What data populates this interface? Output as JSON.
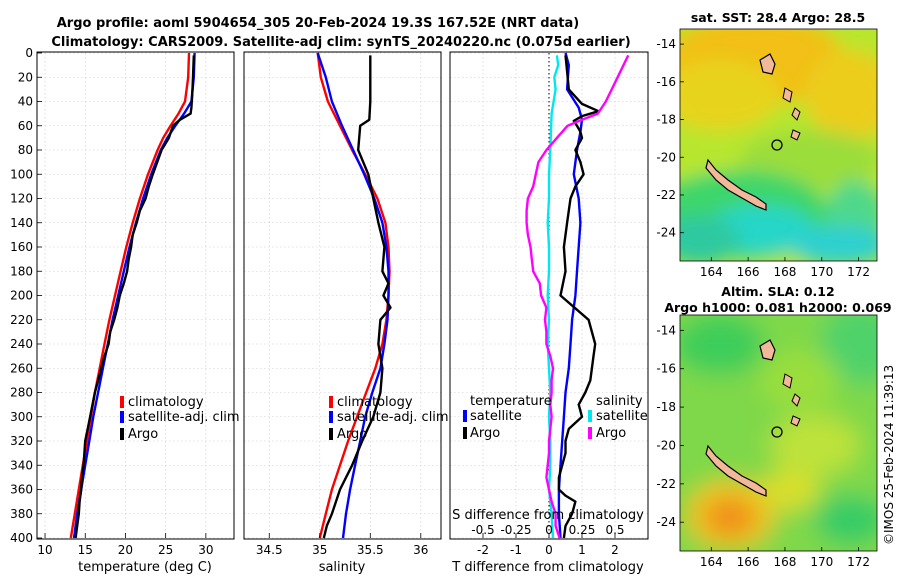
{
  "title_line1": "Argo profile: aoml 5904654_305 20-Feb-2024 19.3S 167.52E (NRT data)",
  "title_line2": "Climatology: CARS2009. Satellite-adj clim: synTS_20240220.nc (0.075d earlier)",
  "timestamp": "©IMOS 25-Feb-2024 11:39:13",
  "colors": {
    "climatology": "#ff0000",
    "satellite": "#0000ff",
    "argo": "#000000",
    "t_sat_diff": "#00e8ee",
    "s_diff": "#ff00ff",
    "land": "#f2b89a"
  },
  "chart_data": [
    {
      "id": "temperature",
      "type": "line",
      "xlabel": "temperature (deg C)",
      "ylabel": "",
      "xlim": [
        9,
        33.5
      ],
      "ylim": [
        400,
        0
      ],
      "xticks": [
        10,
        15,
        20,
        25,
        30
      ],
      "yticks": [
        0,
        20,
        40,
        60,
        80,
        100,
        120,
        140,
        160,
        180,
        200,
        220,
        240,
        260,
        280,
        300,
        320,
        340,
        360,
        380,
        400
      ],
      "legend": [
        "climatology",
        "satellite-adj. clim",
        "Argo"
      ],
      "series": [
        {
          "name": "climatology",
          "color": "#ff0000",
          "depth": [
            0,
            20,
            40,
            50,
            60,
            70,
            80,
            100,
            120,
            140,
            160,
            180,
            200,
            220,
            240,
            260,
            280,
            300,
            320,
            340,
            360,
            380,
            400
          ],
          "values": [
            27.9,
            27.8,
            27.4,
            26.6,
            25.6,
            24.7,
            24.0,
            22.8,
            21.8,
            20.9,
            20.1,
            19.4,
            18.7,
            18.0,
            17.4,
            16.8,
            16.2,
            15.7,
            15.2,
            14.7,
            14.2,
            13.7,
            13.2
          ]
        },
        {
          "name": "satellite-adj. clim",
          "color": "#0000ff",
          "depth": [
            0,
            20,
            40,
            50,
            60,
            70,
            80,
            100,
            120,
            140,
            160,
            180,
            200,
            220,
            240,
            260,
            280,
            300,
            320,
            340,
            360,
            380,
            400
          ],
          "values": [
            28.6,
            28.5,
            28.2,
            27.3,
            26.2,
            25.2,
            24.4,
            23.2,
            22.2,
            21.3,
            20.5,
            19.8,
            19.1,
            18.4,
            17.8,
            17.2,
            16.6,
            16.0,
            15.5,
            15.0,
            14.5,
            14.0,
            13.6
          ]
        },
        {
          "name": "Argo",
          "color": "#000000",
          "depth": [
            2,
            20,
            35,
            45,
            50,
            55,
            60,
            70,
            80,
            100,
            110,
            120,
            130,
            140,
            150,
            160,
            170,
            180,
            190,
            200,
            210,
            220,
            230,
            240,
            250,
            260,
            270,
            280,
            290,
            300,
            310,
            320,
            330,
            340,
            350,
            360,
            370,
            380,
            390,
            400
          ],
          "values": [
            28.5,
            28.4,
            28.3,
            28.2,
            28.1,
            26.8,
            25.9,
            25.4,
            24.5,
            23.4,
            22.9,
            22.5,
            21.8,
            21.4,
            20.9,
            20.7,
            20.4,
            20.2,
            19.8,
            19.3,
            19.0,
            18.6,
            18.1,
            17.9,
            17.4,
            17.0,
            16.6,
            16.2,
            15.9,
            15.6,
            15.3,
            15.0,
            14.9,
            14.8,
            14.6,
            14.5,
            14.3,
            14.2,
            14.0,
            13.8
          ]
        }
      ]
    },
    {
      "id": "salinity",
      "type": "line",
      "xlabel": "salinity",
      "ylabel": "",
      "xlim": [
        34.25,
        36.2
      ],
      "ylim": [
        400,
        0
      ],
      "xticks": [
        34.5,
        35,
        35.5,
        36
      ],
      "legend": [
        "climatology",
        "satellite-adj. clim",
        "Argo"
      ],
      "series": [
        {
          "name": "climatology",
          "color": "#ff0000",
          "depth": [
            0,
            20,
            40,
            60,
            80,
            100,
            120,
            140,
            160,
            180,
            200,
            220,
            240,
            260,
            280,
            300,
            320,
            340,
            360,
            380,
            400
          ],
          "values": [
            34.98,
            35.01,
            35.08,
            35.2,
            35.32,
            35.45,
            35.57,
            35.65,
            35.68,
            35.69,
            35.68,
            35.66,
            35.62,
            35.55,
            35.46,
            35.37,
            35.28,
            35.2,
            35.12,
            35.06,
            35.0
          ]
        },
        {
          "name": "satellite-adj. clim",
          "color": "#0000ff",
          "depth": [
            0,
            20,
            40,
            60,
            80,
            100,
            120,
            140,
            160,
            180,
            200,
            220,
            240,
            260,
            280,
            300,
            320,
            340,
            360,
            380,
            400
          ],
          "values": [
            34.98,
            35.06,
            35.12,
            35.22,
            35.33,
            35.44,
            35.54,
            35.62,
            35.66,
            35.68,
            35.68,
            35.67,
            35.64,
            35.6,
            35.52,
            35.45,
            35.4,
            35.35,
            35.3,
            35.26,
            35.23
          ]
        },
        {
          "name": "Argo",
          "color": "#000000",
          "depth": [
            2,
            20,
            40,
            55,
            60,
            80,
            100,
            120,
            140,
            160,
            180,
            190,
            200,
            210,
            220,
            240,
            260,
            280,
            300,
            320,
            340,
            360,
            380,
            390,
            400
          ],
          "values": [
            35.5,
            35.5,
            35.5,
            35.49,
            35.4,
            35.38,
            35.48,
            35.53,
            35.58,
            35.64,
            35.62,
            35.68,
            35.63,
            35.7,
            35.6,
            35.58,
            35.62,
            35.6,
            35.53,
            35.42,
            35.32,
            35.2,
            35.12,
            35.07,
            35.04
          ]
        }
      ]
    },
    {
      "id": "differences",
      "type": "line",
      "xlabel": "T difference from climatology",
      "secondary_xlabel": "S difference from climatology",
      "xlim": [
        -3,
        3
      ],
      "ylim": [
        400,
        0
      ],
      "xticks": [
        -2,
        -1,
        0,
        1,
        2
      ],
      "secondary_xticks": [
        -0.5,
        -0.25,
        0,
        0.25,
        0.5
      ],
      "legend_temperature": {
        "heading": "temperature",
        "items": [
          "satellite",
          "Argo"
        ]
      },
      "legend_salinity": {
        "heading": "salinity",
        "items": [
          "satellite",
          "Argo"
        ]
      },
      "series": [
        {
          "name": "temperature satellite",
          "color": "#0000ff",
          "depth": [
            0,
            10,
            30,
            45,
            55,
            65,
            80,
            100,
            120,
            140,
            160,
            180,
            200,
            220,
            240,
            260,
            280,
            300,
            320,
            340,
            360,
            380,
            400
          ],
          "values": [
            0.5,
            0.6,
            0.55,
            0.9,
            1.0,
            0.95,
            0.85,
            0.75,
            0.9,
            0.95,
            0.9,
            0.85,
            0.8,
            0.7,
            0.65,
            0.6,
            0.5,
            0.45,
            0.4,
            0.35,
            0.3,
            0.3,
            0.35
          ]
        },
        {
          "name": "temperature Argo",
          "color": "#000000",
          "depth": [
            2,
            15,
            30,
            42,
            48,
            52,
            56,
            60,
            65,
            70,
            75,
            80,
            90,
            100,
            110,
            120,
            140,
            160,
            180,
            200,
            220,
            240,
            250,
            260,
            270,
            280,
            290,
            300,
            310,
            320,
            330,
            340,
            350,
            360,
            365,
            370,
            380,
            390,
            400
          ],
          "values": [
            0.5,
            0.55,
            0.6,
            1.0,
            1.5,
            1.0,
            0.75,
            0.85,
            0.95,
            1.0,
            0.9,
            0.8,
            0.95,
            1.05,
            0.8,
            0.65,
            0.55,
            0.45,
            0.5,
            0.35,
            1.2,
            1.4,
            1.35,
            1.3,
            1.25,
            1.1,
            0.9,
            1.0,
            0.6,
            0.5,
            0.5,
            0.4,
            0.3,
            0.3,
            0.5,
            0.8,
            0.7,
            0.5,
            0.45
          ]
        },
        {
          "name": "salinity satellite",
          "color": "#00e8ee",
          "depth": [
            2,
            10,
            20,
            30,
            50,
            80,
            100,
            120,
            140,
            160,
            180,
            200,
            220,
            240,
            260,
            280,
            300,
            320,
            340,
            360,
            380,
            400
          ],
          "values": [
            0.06,
            0.07,
            0.04,
            0.05,
            0.02,
            0.01,
            0.0,
            0.0,
            -0.01,
            0.0,
            0.0,
            -0.01,
            0.0,
            -0.01,
            0.0,
            0.01,
            0.0,
            0.01,
            0.01,
            0.0,
            0.02,
            0.03
          ]
        },
        {
          "name": "salinity Argo",
          "color": "#ff00ff",
          "depth": [
            2,
            20,
            40,
            50,
            55,
            60,
            70,
            80,
            90,
            100,
            110,
            120,
            130,
            140,
            150,
            160,
            170,
            180,
            190,
            200,
            210,
            220,
            230,
            240,
            250,
            260,
            270,
            280,
            290,
            300,
            310,
            320,
            330,
            340,
            350,
            360,
            370,
            380,
            390,
            400
          ],
          "values": [
            0.6,
            0.52,
            0.43,
            0.37,
            0.25,
            0.14,
            0.06,
            -0.02,
            -0.08,
            -0.1,
            -0.12,
            -0.16,
            -0.17,
            -0.17,
            -0.16,
            -0.14,
            -0.13,
            -0.12,
            -0.07,
            -0.06,
            -0.02,
            -0.03,
            -0.02,
            -0.02,
            0.01,
            0.03,
            0.02,
            0.02,
            0.01,
            0.02,
            0.01,
            0.0,
            0.0,
            -0.01,
            -0.02,
            0.0,
            0.02,
            0.05,
            0.05,
            0.08
          ]
        }
      ]
    },
    {
      "id": "sst_map",
      "type": "heatmap",
      "title": "sat. SST: 28.4 Argo: 28.5",
      "xticks": [
        164,
        166,
        168,
        170,
        172
      ],
      "yticks": [
        -14,
        -16,
        -18,
        -20,
        -22,
        -24
      ],
      "xlim": [
        162.3,
        173.0
      ],
      "ylim": [
        -25.5,
        -13.2
      ],
      "argo_position": [
        167.52,
        -19.3
      ]
    },
    {
      "id": "sla_map",
      "type": "heatmap",
      "title_line1": "Altim. SLA: 0.12",
      "title_line2": "Argo h1000: 0.081 h2000: 0.069",
      "xticks": [
        164,
        166,
        168,
        170,
        172
      ],
      "yticks": [
        -14,
        -16,
        -18,
        -20,
        -22,
        -24
      ],
      "xlim": [
        162.3,
        173.0
      ],
      "ylim": [
        -25.5,
        -13.2
      ],
      "argo_position": [
        167.52,
        -19.3
      ]
    }
  ]
}
